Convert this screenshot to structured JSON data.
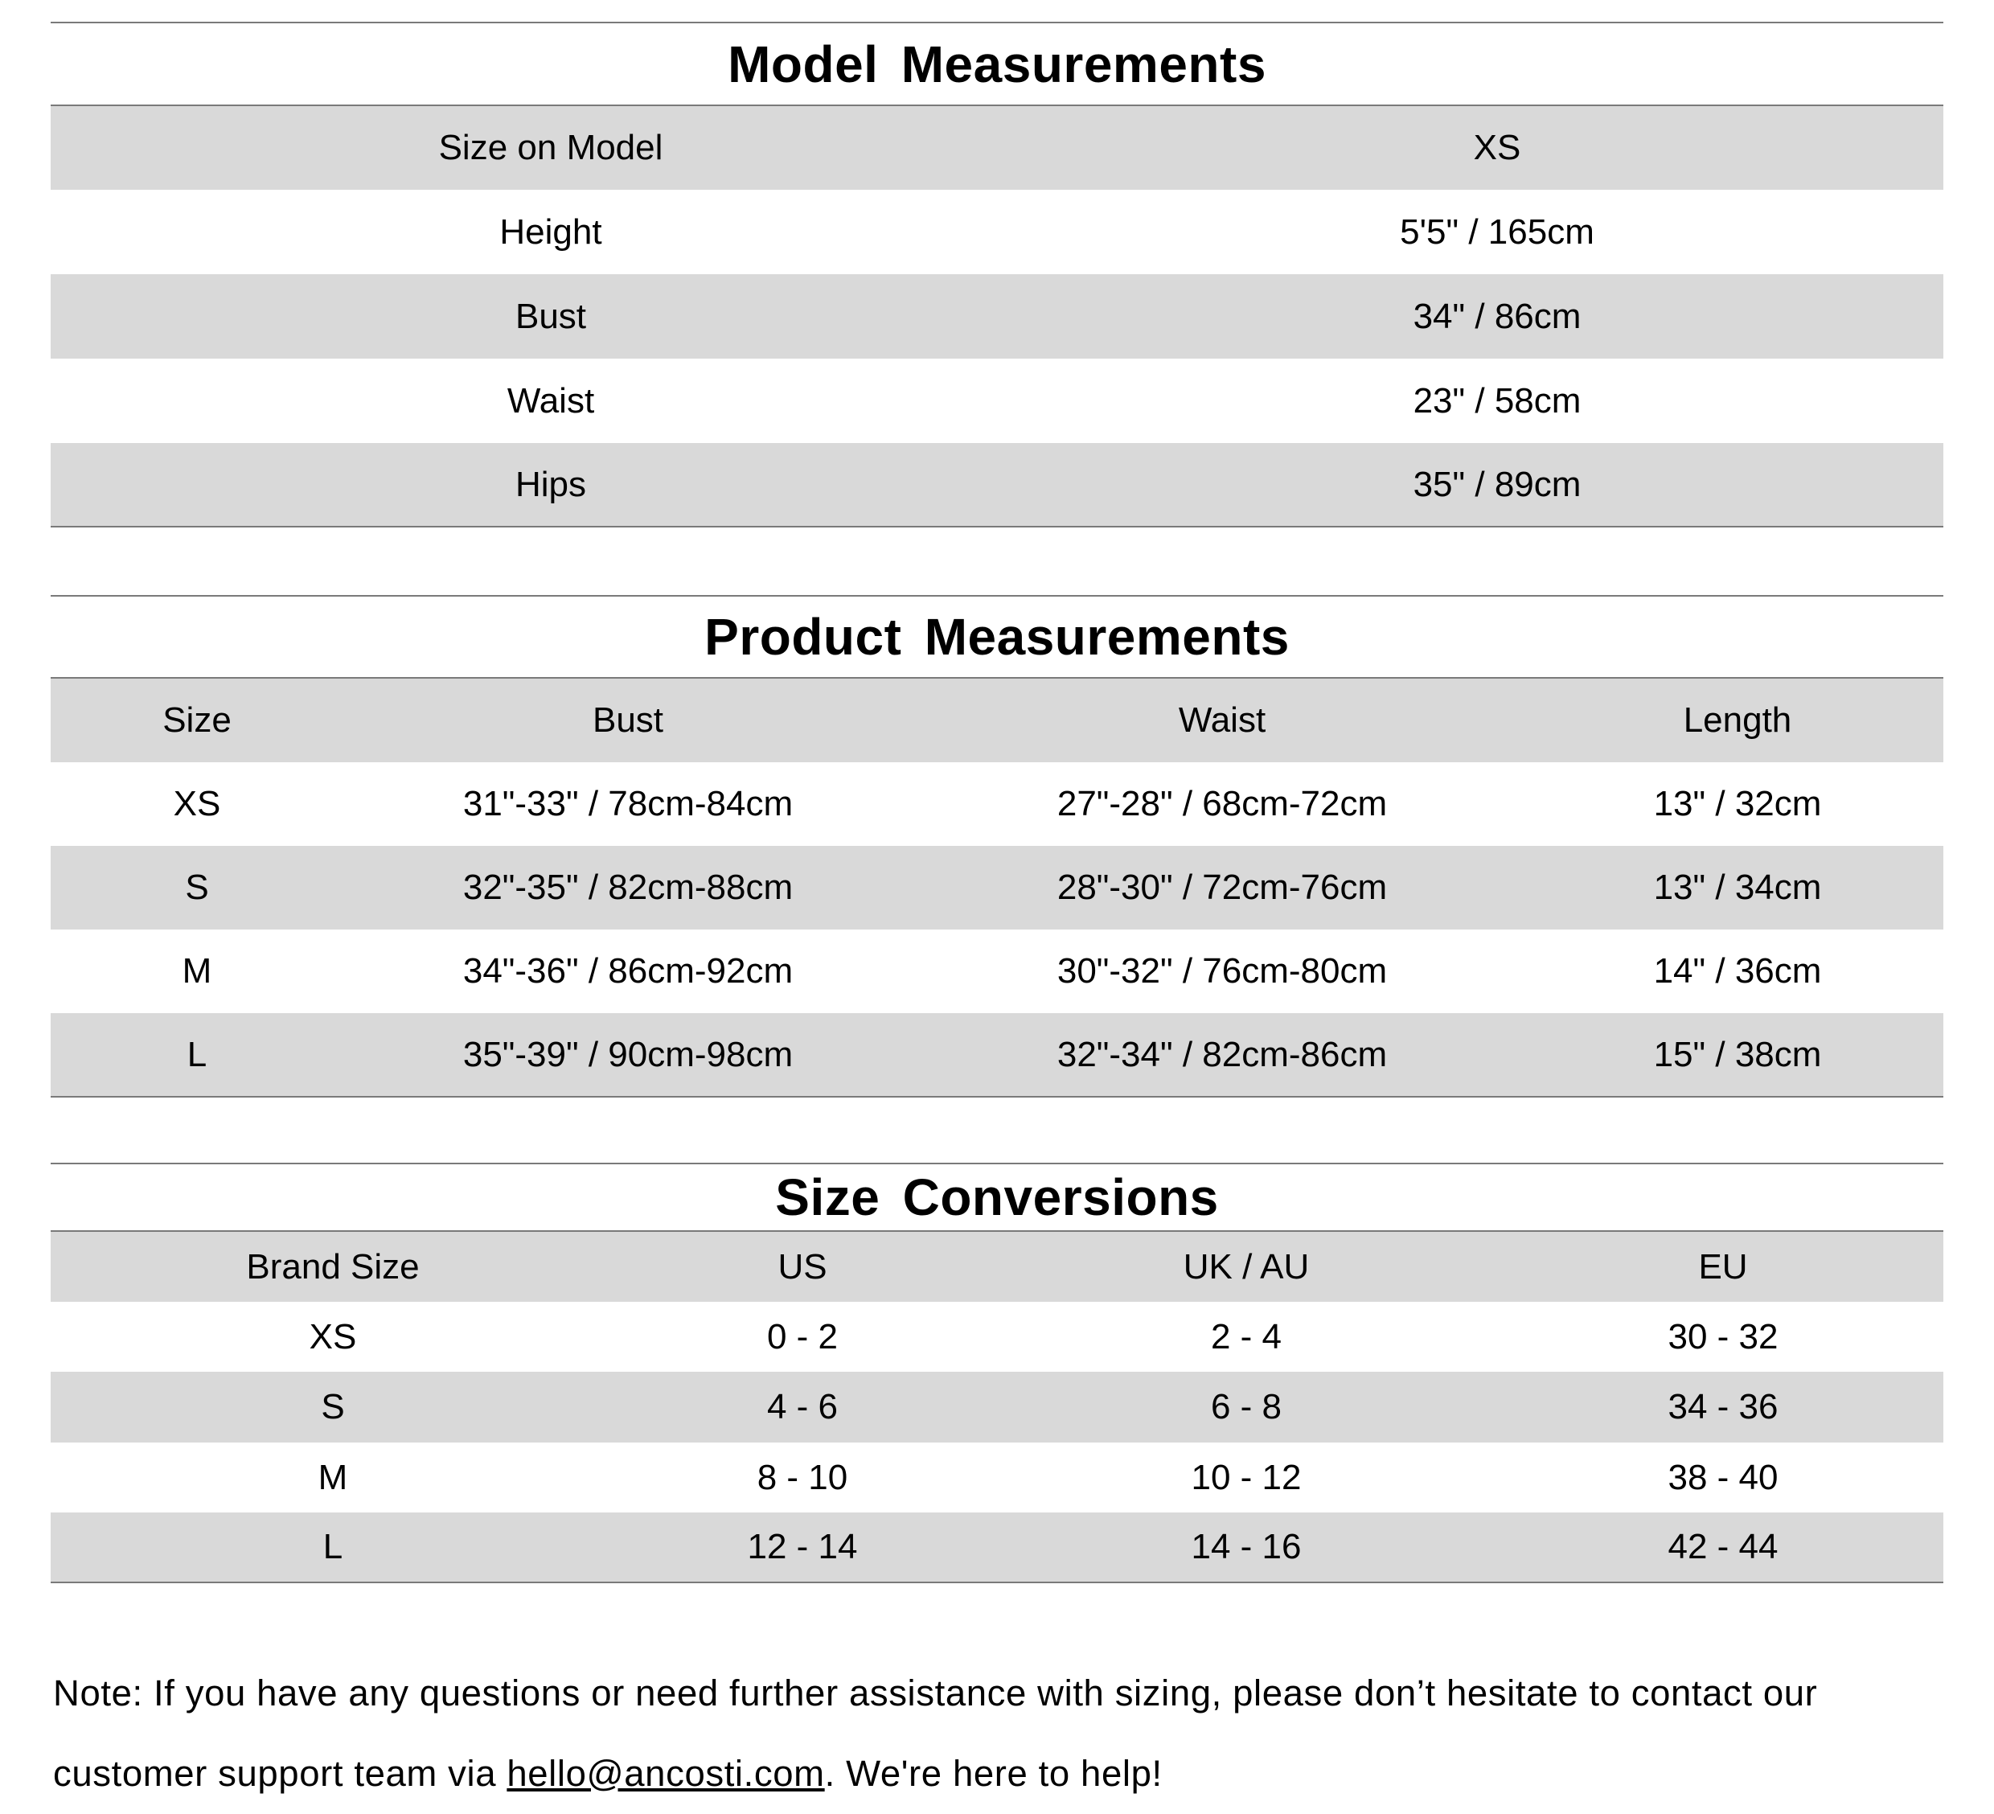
{
  "model": {
    "title": "Model  Measurements",
    "header": [
      "Size on Model",
      "XS"
    ],
    "rows": [
      [
        "Height",
        "5'5\" / 165cm"
      ],
      [
        "Bust",
        "34\" / 86cm"
      ],
      [
        "Waist",
        "23\" / 58cm"
      ],
      [
        "Hips",
        "35\" / 89cm"
      ]
    ]
  },
  "product": {
    "title": "Product  Measurements",
    "header": [
      "Size",
      "Bust",
      "Waist",
      "Length"
    ],
    "rows": [
      [
        "XS",
        "31\"-33\" / 78cm-84cm",
        "27\"-28\" / 68cm-72cm",
        "13\" / 32cm"
      ],
      [
        "S",
        "32\"-35\" / 82cm-88cm",
        "28\"-30\" / 72cm-76cm",
        "13\" / 34cm"
      ],
      [
        "M",
        "34\"-36\" / 86cm-92cm",
        "30\"-32\" / 76cm-80cm",
        "14\" / 36cm"
      ],
      [
        "L",
        "35\"-39\" / 90cm-98cm",
        "32\"-34\" / 82cm-86cm",
        "15\" / 38cm"
      ]
    ]
  },
  "conversions": {
    "title": "Size  Conversions",
    "header": [
      "Brand Size",
      "US",
      "UK / AU",
      "EU"
    ],
    "rows": [
      [
        "XS",
        "0 - 2",
        "2 - 4",
        "30 - 32"
      ],
      [
        "S",
        "4 - 6",
        "6 - 8",
        "34 - 36"
      ],
      [
        "M",
        "8 - 10",
        "10 - 12",
        "38 - 40"
      ],
      [
        "L",
        "12 - 14",
        "14 - 16",
        "42 - 44"
      ]
    ]
  },
  "note": {
    "text_before": "Note: If you have any questions or need further assistance with sizing, please don’t hesitate to contact our customer support team via ",
    "email": "hello@ancosti.com",
    "text_after": ". We're here to help!"
  },
  "colors": {
    "row_shade": "#d9d9d9",
    "rule": "#7a7a7a"
  }
}
